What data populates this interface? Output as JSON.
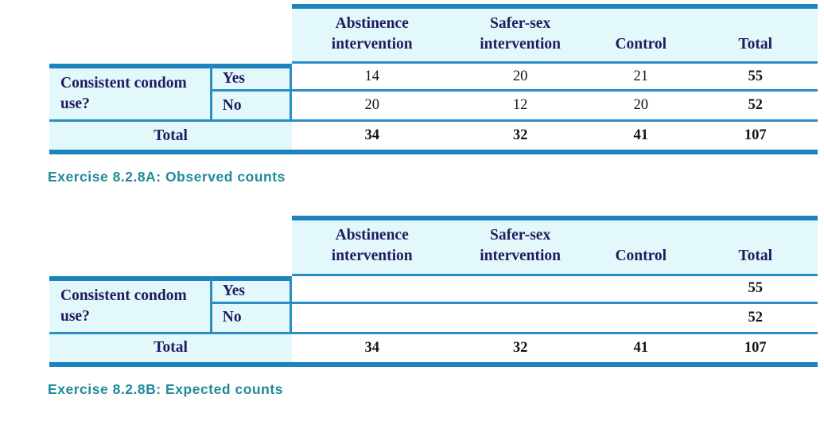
{
  "colors": {
    "border_thin": "#2b8dc6",
    "border_thick": "#1d83bd",
    "header_bg": "#e2f8fb",
    "header_text": "#201b5e",
    "value_text": "#141414",
    "caption_text": "#1f8b9a"
  },
  "tables": [
    {
      "caption": "Exercise 8.2.8A: Observed counts",
      "row_group_label": "Consistent condom use?",
      "columns": [
        "Abstinence intervention",
        "Safer-sex intervention",
        "Control",
        "Total"
      ],
      "rows": [
        {
          "label": "Yes",
          "values": [
            "14",
            "20",
            "21"
          ],
          "total": "55"
        },
        {
          "label": "No",
          "values": [
            "20",
            "12",
            "20"
          ],
          "total": "52"
        }
      ],
      "total_row": {
        "label": "Total",
        "values": [
          "34",
          "32",
          "41"
        ],
        "total": "107"
      }
    },
    {
      "caption": "Exercise 8.2.8B: Expected counts",
      "row_group_label": "Consistent condom use?",
      "columns": [
        "Abstinence intervention",
        "Safer-sex intervention",
        "Control",
        "Total"
      ],
      "rows": [
        {
          "label": "Yes",
          "values": [
            "",
            "",
            ""
          ],
          "total": "55"
        },
        {
          "label": "No",
          "values": [
            "",
            "",
            ""
          ],
          "total": "52"
        }
      ],
      "total_row": {
        "label": "Total",
        "values": [
          "34",
          "32",
          "41"
        ],
        "total": "107"
      }
    }
  ]
}
